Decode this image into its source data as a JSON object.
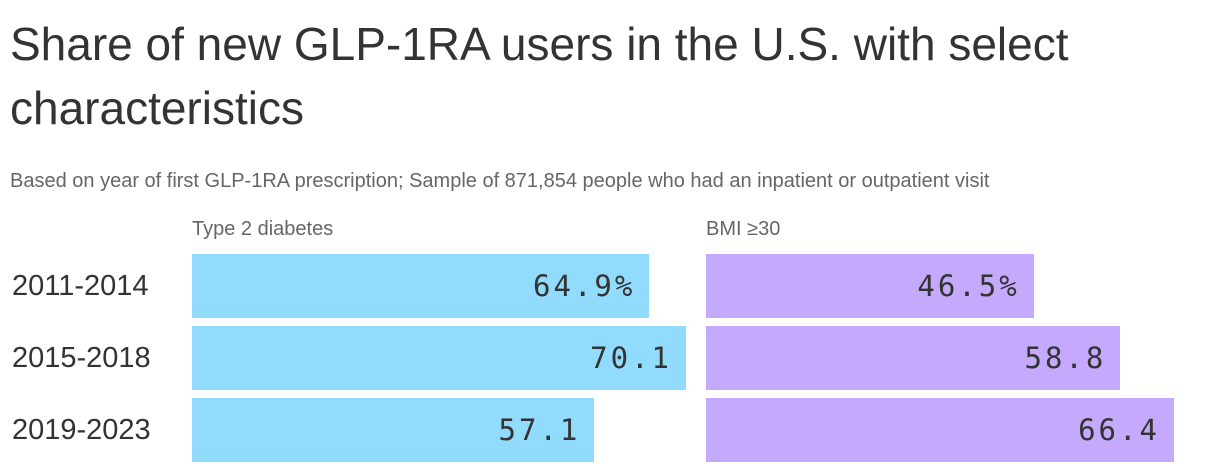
{
  "title": "Share of new GLP-1RA users in the U.S. with select characteristics",
  "subtitle": "Based on year of first GLP-1RA prescription; Sample of 871,854 people who had an inpatient or outpatient visit",
  "colors": {
    "type2": "#91dbfd",
    "bmi": "#c4a9fc",
    "text": "#333333",
    "muted": "#666666"
  },
  "chart_data": [
    {
      "type": "bar",
      "orientation": "horizontal",
      "title": "Type 2 diabetes",
      "categories": [
        "2011-2014",
        "2015-2018",
        "2019-2023"
      ],
      "values": [
        64.9,
        70.1,
        57.1
      ],
      "value_labels": [
        "64.9%",
        "70.1",
        "57.1"
      ],
      "color": "#91dbfd"
    },
    {
      "type": "bar",
      "orientation": "horizontal",
      "title": "BMI ≥30",
      "categories": [
        "2011-2014",
        "2015-2018",
        "2019-2023"
      ],
      "values": [
        46.5,
        58.8,
        66.4
      ],
      "value_labels": [
        "46.5%",
        "58.8",
        "66.4"
      ],
      "color": "#c4a9fc"
    }
  ]
}
